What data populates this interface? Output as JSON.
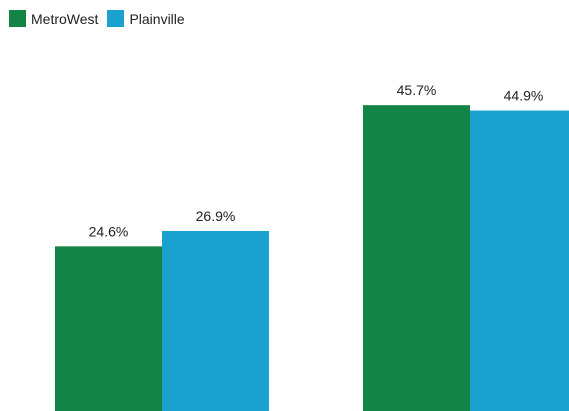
{
  "chart_data": {
    "type": "bar",
    "categories": [
      "",
      ""
    ],
    "series": [
      {
        "name": "MetroWest",
        "color": "#138446",
        "values": [
          24.6,
          45.7
        ],
        "labels": [
          "24.6%",
          "45.7%"
        ]
      },
      {
        "name": "Plainville",
        "color": "#1aa1cf",
        "values": [
          26.9,
          44.9
        ],
        "labels": [
          "26.9%",
          "44.9%"
        ]
      }
    ],
    "title": "",
    "xlabel": "",
    "ylabel": "",
    "ylim": [
      0,
      52
    ],
    "grid": false,
    "legend_position": "top-left"
  }
}
